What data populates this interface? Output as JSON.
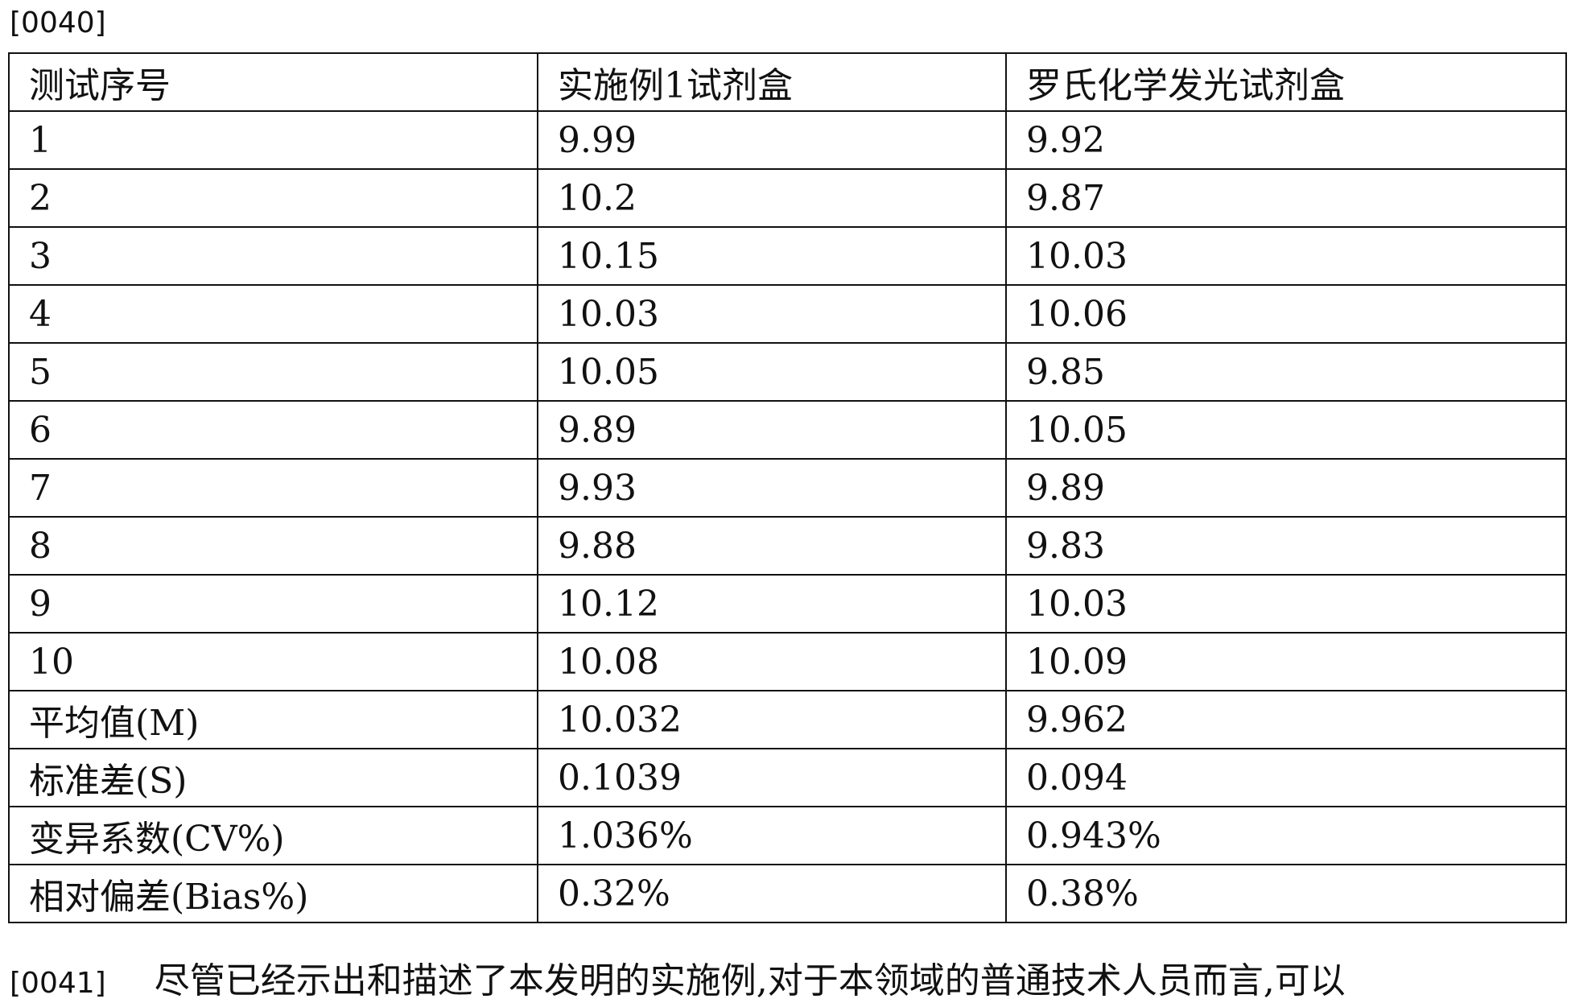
{
  "paragraph_top": {
    "label": "[0040]"
  },
  "table": {
    "header": [
      "测试序号",
      "实施例1试剂盒",
      "罗氏化学发光试剂盒"
    ],
    "rows": [
      [
        "1",
        "9.99",
        "9.92"
      ],
      [
        "2",
        "10.2",
        "9.87"
      ],
      [
        "3",
        "10.15",
        "10.03"
      ],
      [
        "4",
        "10.03",
        "10.06"
      ],
      [
        "5",
        "10.05",
        "9.85"
      ],
      [
        "6",
        "9.89",
        "10.05"
      ],
      [
        "7",
        "9.93",
        "9.89"
      ],
      [
        "8",
        "9.88",
        "9.83"
      ],
      [
        "9",
        "10.12",
        "10.03"
      ],
      [
        "10",
        "10.08",
        "10.09"
      ],
      [
        "平均值(M)",
        "10.032",
        "9.962"
      ],
      [
        "标准差(S)",
        "0.1039",
        "0.094"
      ],
      [
        "变异系数(CV%)",
        "1.036%",
        "0.943%"
      ],
      [
        "相对偏差(Bias%)",
        "0.32%",
        "0.38%"
      ]
    ]
  },
  "paragraph_bottom": {
    "label": "[0041]",
    "text": "尽管已经示出和描述了本发明的实施例,对于本领域的普通技术人员而言,可以"
  }
}
